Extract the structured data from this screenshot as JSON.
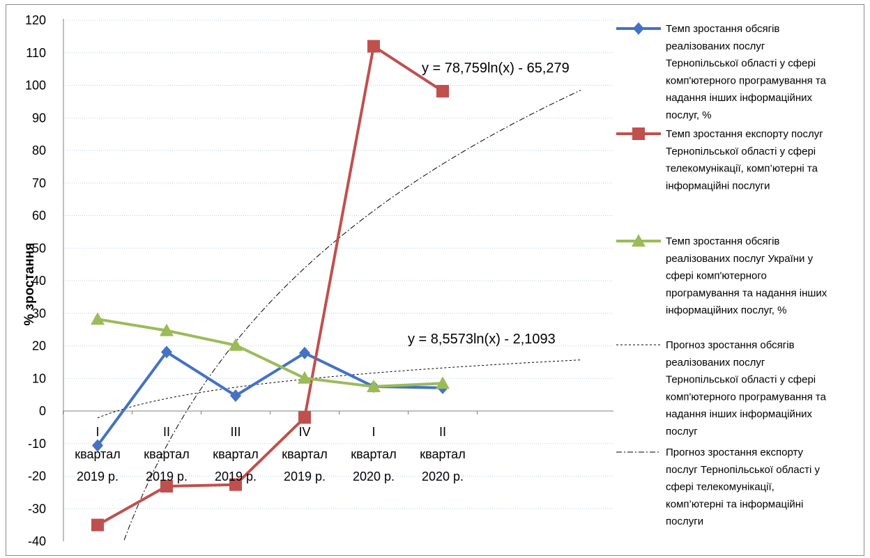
{
  "chart_data": {
    "type": "line",
    "ylabel": "% зростання",
    "ylim": [
      -40,
      120
    ],
    "yticks": [
      -40,
      -30,
      -20,
      -10,
      0,
      10,
      20,
      30,
      40,
      50,
      60,
      70,
      80,
      90,
      100,
      110,
      120
    ],
    "grid": true,
    "legend_position": "right",
    "categories": [
      [
        "I",
        "квартал",
        "2019 р."
      ],
      [
        "II",
        "квартал",
        "2019 р."
      ],
      [
        "III",
        "квартал",
        "2019 р."
      ],
      [
        "IV",
        "квартал",
        "2019 р."
      ],
      [
        "I",
        "квартал",
        "2020 р."
      ],
      [
        "II",
        "квартал",
        "2020 р."
      ]
    ],
    "series": [
      {
        "name": "Темп зростання обсягів реалізованих послуг Тернопільської області у сфері комп'ютерного програмування та надання інших інформаційних послуг, %",
        "legend_lines": [
          "Темп зростання обсягів",
          "реалізованих послуг",
          "Тернопільської області у сфері",
          "комп'ютерного програмування та",
          "надання інших інформаційних",
          "послуг, %"
        ],
        "color": "#4472C4",
        "marker": "diamond",
        "values": [
          -10.6,
          18.1,
          4.7,
          17.8,
          7.5,
          7.1
        ]
      },
      {
        "name": "Темп зростання експорту послуг Тернопільської області у сфері телекомунікації, комп’ютерні та інформаційні послуги",
        "legend_lines": [
          "Темп зростання експорту послуг",
          "Тернопільської області у сфері",
          "телекомунікації, комп’ютерні та",
          "інформаційні послуги"
        ],
        "color": "#C0504D",
        "marker": "square",
        "values": [
          -35.0,
          -23.1,
          -22.6,
          -2.0,
          112.0,
          98.2
        ]
      },
      {
        "name": "Темп зростання обсягів реалізованих послуг України у сфері комп'ютерного програмування та надання інших інформаційних послуг, %",
        "legend_lines": [
          "Темп зростання обсягів",
          "реалізованих послуг України у",
          "сфері  комп'ютерного",
          "програмування та надання інших",
          "інформаційних послуг, %"
        ],
        "color": "#9BBB59",
        "marker": "triangle",
        "values": [
          28.2,
          24.7,
          20.2,
          10.1,
          7.5,
          8.5
        ]
      }
    ],
    "trendlines": [
      {
        "name": "Прогноз зростання обсягів реалізованих послуг Тернопільської області у сфері комп'ютерного програмування та надання інших інформаційних послуг",
        "legend_lines": [
          "Прогноз зростання обсягів",
          "реалізованих послуг",
          "Тернопільської області у сфері",
          "комп'ютерного програмування та",
          "надання інших інформаційних",
          "послуг"
        ],
        "equation": "y = 8,5573ln(x) - 2,1093",
        "a": 8.5573,
        "b": -2.1093,
        "style": "dotted",
        "forecast_periods": 2
      },
      {
        "name": "Прогноз зростання експорту послуг Тернопільської області у сфері телекомунікації, комп’ютерні та інформаційні послуги",
        "legend_lines": [
          "Прогноз зростання експорту",
          "послуг Тернопільської області у",
          "сфері телекомунікації,",
          "комп’ютерні та інформаційні",
          "послуги"
        ],
        "equation": "y = 78,759ln(x) - 65,279",
        "a": 78.759,
        "b": -65.279,
        "style": "dash-dot",
        "forecast_periods": 2
      }
    ]
  }
}
